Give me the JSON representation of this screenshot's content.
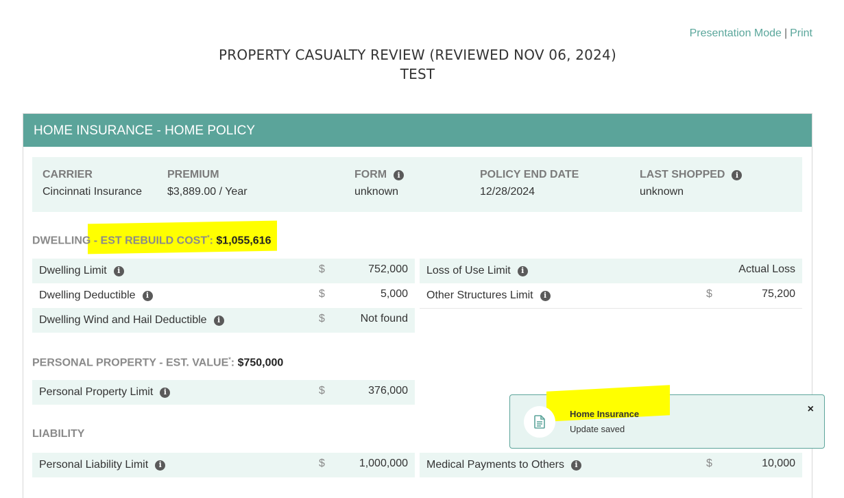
{
  "top_links": {
    "presentation": "Presentation Mode",
    "separator": "|",
    "print": "Print"
  },
  "page": {
    "title_line1": "PROPERTY CASUALTY REVIEW (REVIEWED NOV 06, 2024)",
    "title_line2": "TEST"
  },
  "card": {
    "header": "HOME INSURANCE - HOME POLICY"
  },
  "summary": {
    "carrier_label": "CARRIER",
    "carrier_value": "Cincinnati Insurance",
    "premium_label": "PREMIUM",
    "premium_value": "$3,889.00 / Year",
    "form_label": "FORM",
    "form_value": "unknown",
    "end_date_label": "POLICY END DATE",
    "end_date_value": "12/28/2024",
    "last_shopped_label": "LAST SHOPPED",
    "last_shopped_value": "unknown"
  },
  "dwelling": {
    "title": "DWELLING",
    "dash": " - ",
    "rebuild_label": "EST REBUILD COST",
    "asterisk": "*",
    "colon": ": ",
    "rebuild_value": "$1,055,616",
    "rows_left": [
      {
        "label": "Dwelling Limit",
        "currency": "$",
        "value": "752,000"
      },
      {
        "label": "Dwelling Deductible",
        "currency": "$",
        "value": "5,000"
      },
      {
        "label": "Dwelling Wind and Hail Deductible",
        "currency": "$",
        "value": "Not found"
      }
    ],
    "rows_right": [
      {
        "label": "Loss of Use Limit",
        "currency": "",
        "value": "Actual Loss"
      },
      {
        "label": "Other Structures Limit",
        "currency": "$",
        "value": "75,200"
      }
    ]
  },
  "personal_property": {
    "title": "PERSONAL PROPERTY - EST. VALUE",
    "asterisk": "*",
    "colon": ": ",
    "value": "$750,000",
    "rows": [
      {
        "label": "Personal Property Limit",
        "currency": "$",
        "value": "376,000"
      }
    ]
  },
  "liability": {
    "title": "LIABILITY",
    "rows_left": [
      {
        "label": "Personal Liability Limit",
        "currency": "$",
        "value": "1,000,000"
      }
    ],
    "rows_right": [
      {
        "label": "Medical Payments to Others",
        "currency": "$",
        "value": "10,000"
      }
    ]
  },
  "toast": {
    "title": "Home Insurance",
    "message": "Update saved",
    "close": "×"
  },
  "icons": {
    "info": "i",
    "document": "document-icon",
    "close": "close-icon"
  },
  "colors": {
    "accent": "#5ba49a",
    "row_bg": "#ebf6f3",
    "highlight": "#ffff00"
  }
}
